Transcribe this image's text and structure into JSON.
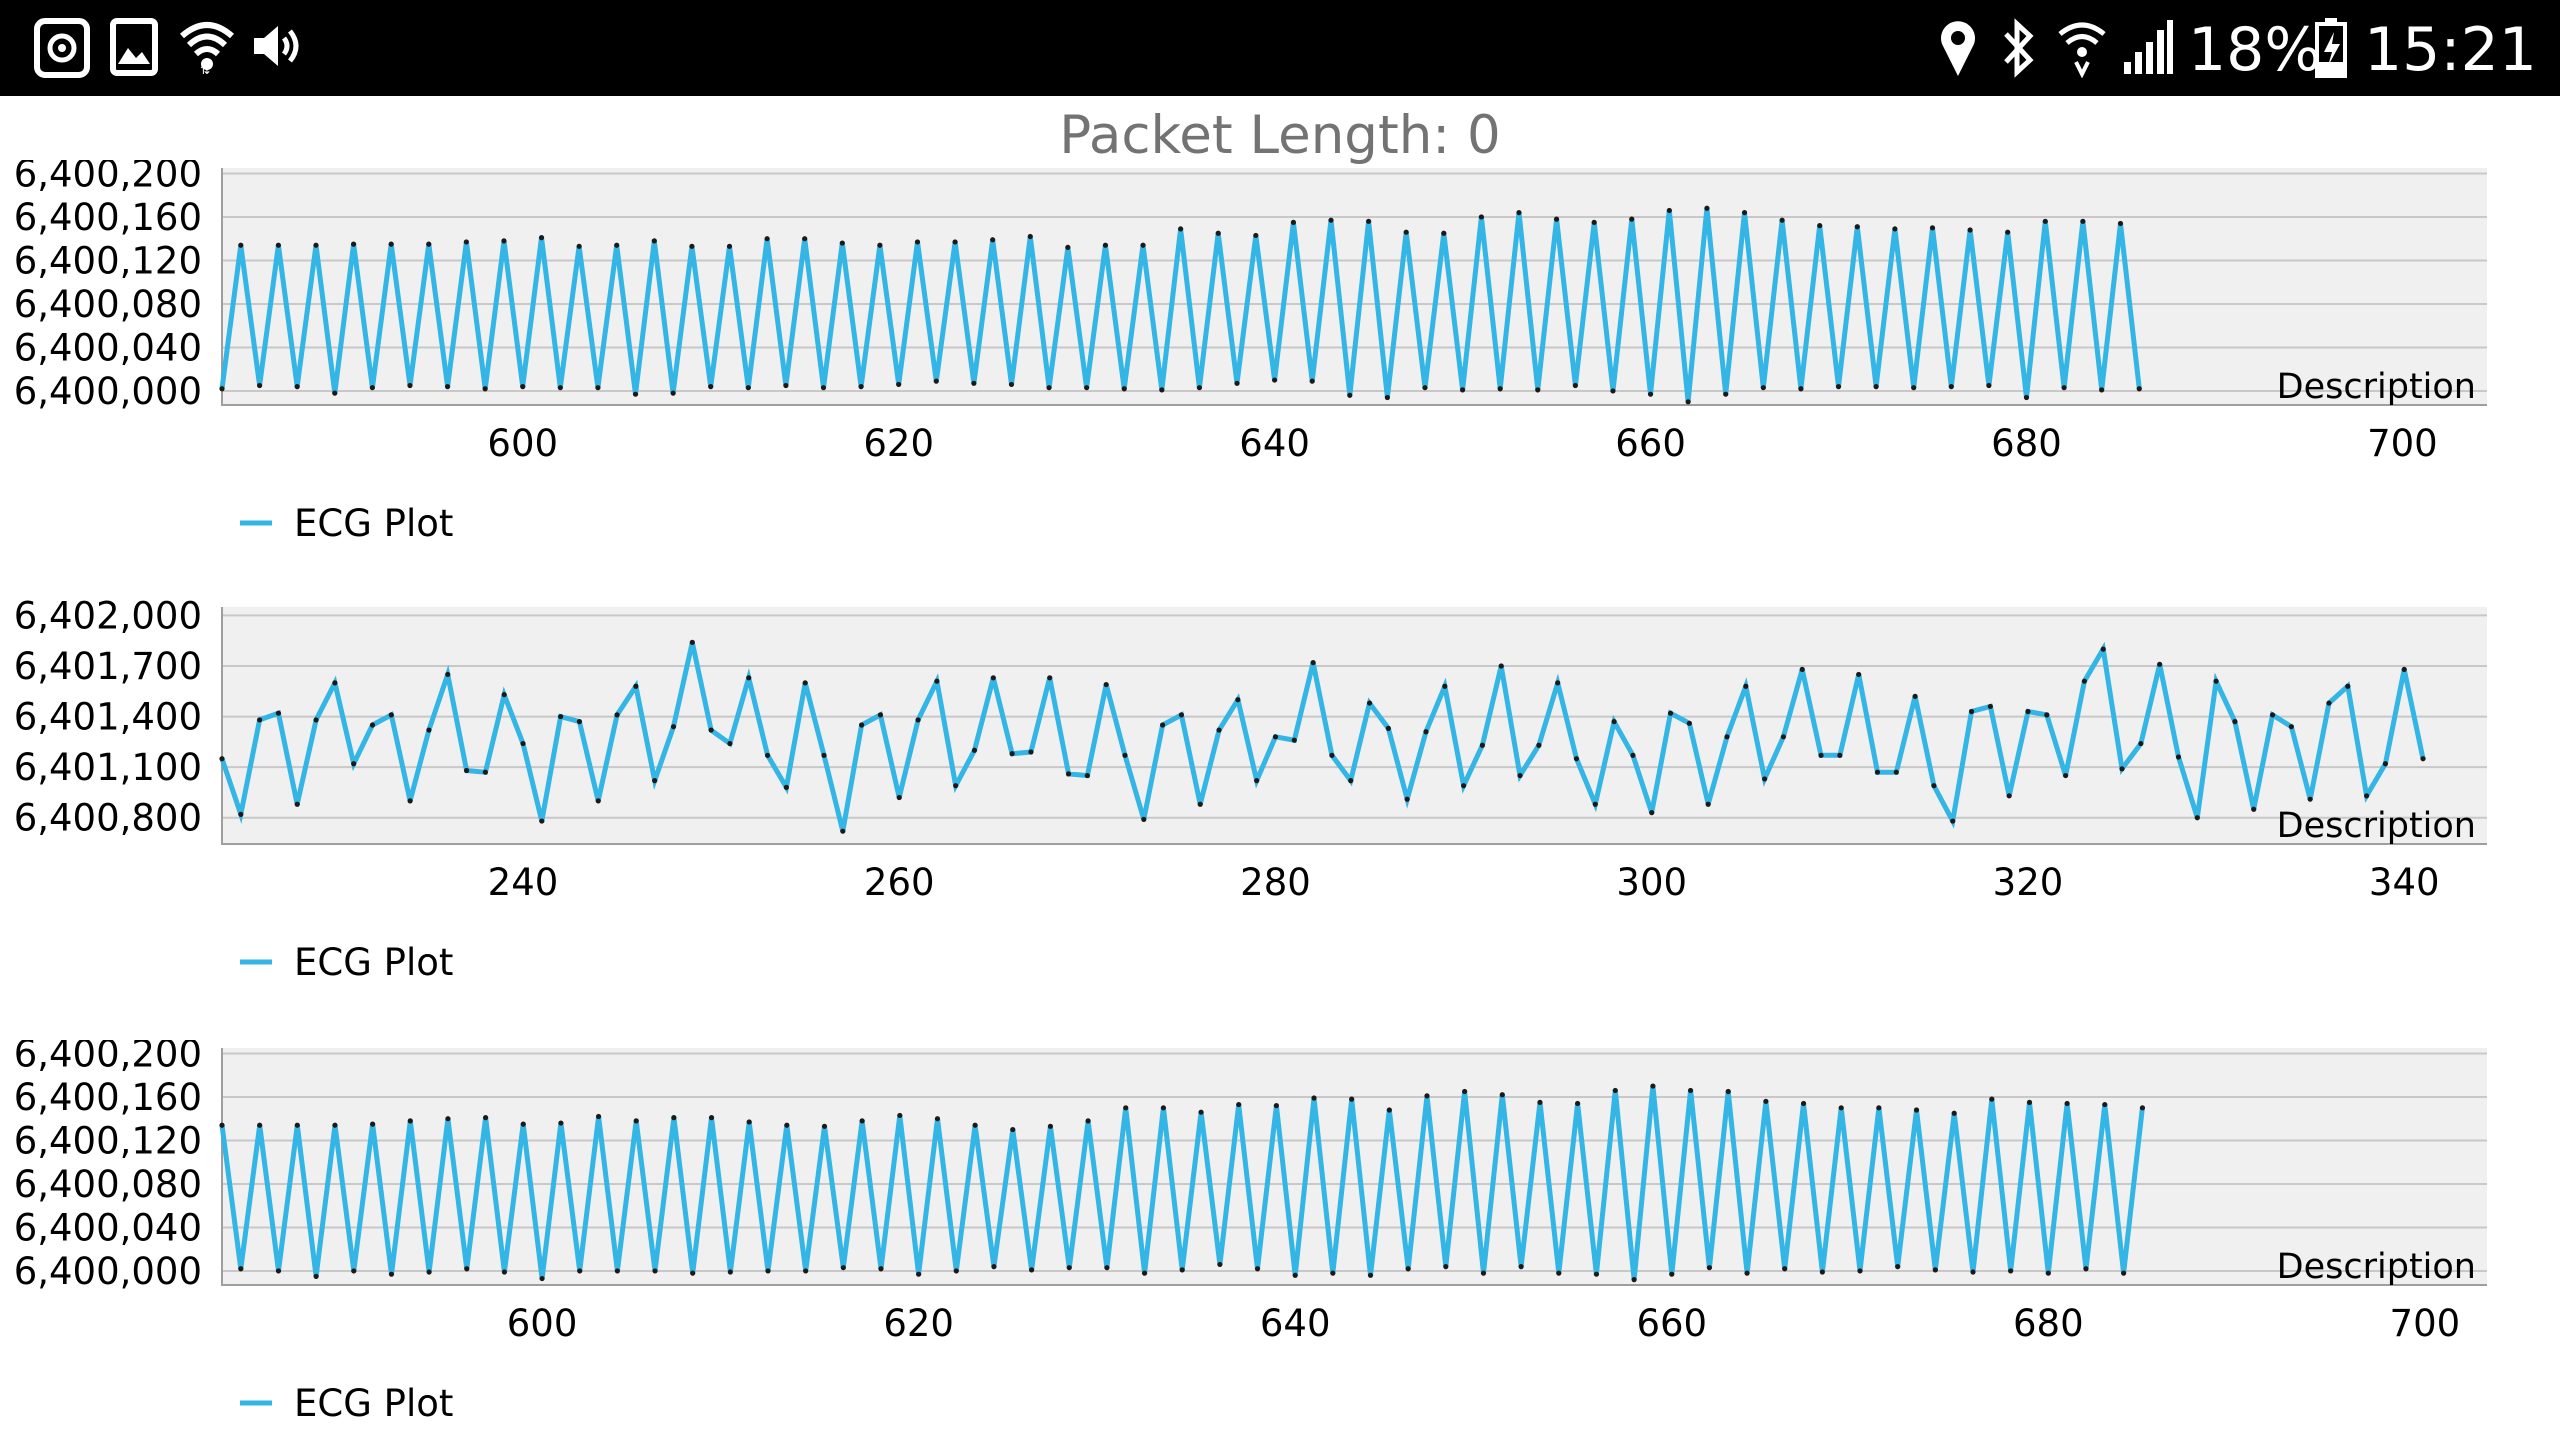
{
  "status_bar": {
    "left_icons": [
      "screen-record-icon",
      "gallery-icon",
      "wifi-icon",
      "volume-icon"
    ],
    "right_icons": [
      "location-icon",
      "bluetooth-icon",
      "wifi-calling-icon",
      "signal-icon",
      "battery-charging-icon"
    ],
    "battery": "18%",
    "time": "15:21"
  },
  "header": {
    "title": "Packet Length: 0"
  },
  "colors": {
    "line": "#33b5e5",
    "plot_background": "#f0f0f0",
    "grid": "#c8c8c8",
    "point": "#1a1a1a",
    "text": "#000000"
  },
  "chart_data": [
    {
      "type": "line",
      "series": [
        {
          "name": "ECG Plot",
          "x_start": 584,
          "values": [
            6400002,
            6400134,
            6400005,
            6400134,
            6400004,
            6400134,
            6399998,
            6400135,
            6400003,
            6400135,
            6400005,
            6400135,
            6400004,
            6400137,
            6400002,
            6400138,
            6400004,
            6400141,
            6400003,
            6400133,
            6400003,
            6400134,
            6399997,
            6400138,
            6399998,
            6400133,
            6400004,
            6400133,
            6400003,
            6400140,
            6400005,
            6400140,
            6400003,
            6400136,
            6400004,
            6400134,
            6400006,
            6400137,
            6400009,
            6400137,
            6400007,
            6400139,
            6400006,
            6400142,
            6400003,
            6400132,
            6400003,
            6400134,
            6400002,
            6400134,
            6400001,
            6400149,
            6400003,
            6400145,
            6400007,
            6400143,
            6400010,
            6400155,
            6400009,
            6400157,
            6399996,
            6400156,
            6399994,
            6400146,
            6400003,
            6400145,
            6400001,
            6400160,
            6400002,
            6400164,
            6400001,
            6400158,
            6400005,
            6400155,
            6400000,
            6400158,
            6399997,
            6400166,
            6399990,
            6400168,
            6399997,
            6400164,
            6400003,
            6400157,
            6400002,
            6400152,
            6400004,
            6400151,
            6400004,
            6400149,
            6400003,
            6400150,
            6400004,
            6400148,
            6400005,
            6400146,
            6399994,
            6400156,
            6400003,
            6400156,
            6400001,
            6400154,
            6400002
          ]
        }
      ],
      "ylim": [
        6399988,
        6400205
      ],
      "yticks": [
        6400000,
        6400040,
        6400080,
        6400120,
        6400160,
        6400200
      ],
      "ytick_labels": [
        "6,400,000",
        "6,400,040",
        "6,400,080",
        "6,400,120",
        "6,400,160",
        "6,400,200"
      ],
      "xlim": [
        584,
        704.5
      ],
      "xticks": [
        600,
        620,
        640,
        660,
        680,
        700
      ],
      "xtick_labels": [
        "600",
        "620",
        "640",
        "660",
        "680",
        "700"
      ],
      "description": "Description",
      "legend": "ECG Plot",
      "grid": true,
      "legend_position": "bottom-left"
    },
    {
      "type": "line",
      "series": [
        {
          "name": "ECG Plot",
          "x_start": 224,
          "values": [
            6401150,
            6400820,
            6401380,
            6401420,
            6400880,
            6401380,
            6401600,
            6401120,
            6401350,
            6401410,
            6400900,
            6401320,
            6401650,
            6401080,
            6401070,
            6401530,
            6401240,
            6400780,
            6401400,
            6401370,
            6400900,
            6401410,
            6401580,
            6401020,
            6401340,
            6401840,
            6401320,
            6401240,
            6401630,
            6401170,
            6400980,
            6401600,
            6401170,
            6400720,
            6401350,
            6401410,
            6400920,
            6401380,
            6401610,
            6400990,
            6401200,
            6401630,
            6401180,
            6401190,
            6401630,
            6401060,
            6401050,
            6401590,
            6401170,
            6400790,
            6401350,
            6401410,
            6400880,
            6401320,
            6401500,
            6401020,
            6401280,
            6401260,
            6401720,
            6401170,
            6401020,
            6401480,
            6401330,
            6400910,
            6401310,
            6401580,
            6400990,
            6401230,
            6401700,
            6401050,
            6401230,
            6401600,
            6401150,
            6400880,
            6401370,
            6401170,
            6400830,
            6401420,
            6401360,
            6400880,
            6401280,
            6401580,
            6401030,
            6401280,
            6401680,
            6401170,
            6401170,
            6401650,
            6401070,
            6401070,
            6401520,
            6400990,
            6400780,
            6401430,
            6401460,
            6400930,
            6401430,
            6401410,
            6401050,
            6401610,
            6401800,
            6401090,
            6401240,
            6401710,
            6401160,
            6400800,
            6401610,
            6401370,
            6400850,
            6401410,
            6401340,
            6400910,
            6401480,
            6401580,
            6400930,
            6401120,
            6401680,
            6401150
          ]
        }
      ],
      "ylim": [
        6400650,
        6402050
      ],
      "yticks": [
        6400800,
        6401100,
        6401400,
        6401700,
        6402000
      ],
      "ytick_labels": [
        "6,400,800",
        "6,401,100",
        "6,401,400",
        "6,401,700",
        "6,402,000"
      ],
      "xlim": [
        224,
        344.4
      ],
      "xticks": [
        240,
        260,
        280,
        300,
        320,
        340
      ],
      "xtick_labels": [
        "240",
        "260",
        "280",
        "300",
        "320",
        "340"
      ],
      "description": "Description",
      "legend": "ECG Plot",
      "grid": true,
      "legend_position": "bottom-left"
    },
    {
      "type": "line",
      "series": [
        {
          "name": "ECG Plot",
          "x_start": 583,
          "values": [
            6400134,
            6400002,
            6400134,
            6400000,
            6400134,
            6399995,
            6400134,
            6400000,
            6400135,
            6399997,
            6400138,
            6399999,
            6400140,
            6400002,
            6400141,
            6399999,
            6400135,
            6399993,
            6400136,
            6400000,
            6400142,
            6400000,
            6400138,
            6400000,
            6400141,
            6399998,
            6400141,
            6399999,
            6400137,
            6400000,
            6400134,
            6400000,
            6400133,
            6400003,
            6400138,
            6400002,
            6400143,
            6399997,
            6400140,
            6400000,
            6400134,
            6400004,
            6400130,
            6400001,
            6400133,
            6400003,
            6400138,
            6400003,
            6400150,
            6399998,
            6400150,
            6400001,
            6400146,
            6400006,
            6400153,
            6400002,
            6400152,
            6399996,
            6400159,
            6399998,
            6400158,
            6399996,
            6400148,
            6400002,
            6400161,
            6400004,
            6400165,
            6399998,
            6400162,
            6400004,
            6400155,
            6399998,
            6400154,
            6399997,
            6400166,
            6399992,
            6400170,
            6399997,
            6400166,
            6400003,
            6400165,
            6399998,
            6400156,
            6400002,
            6400154,
            6399999,
            6400150,
            6400000,
            6400150,
            6400004,
            6400148,
            6400001,
            6400145,
            6399999,
            6400158,
            6400000,
            6400155,
            6399998,
            6400154,
            6400002,
            6400153,
            6399998,
            6400150
          ]
        }
      ],
      "ylim": [
        6399988,
        6400205
      ],
      "yticks": [
        6400000,
        6400040,
        6400080,
        6400120,
        6400160,
        6400200
      ],
      "ytick_labels": [
        "6,400,000",
        "6,400,040",
        "6,400,080",
        "6,400,120",
        "6,400,160",
        "6,400,200"
      ],
      "xlim": [
        583,
        703.3
      ],
      "xticks": [
        600,
        620,
        640,
        660,
        680,
        700
      ],
      "xtick_labels": [
        "600",
        "620",
        "640",
        "660",
        "680",
        "700"
      ],
      "description": "Description",
      "legend": "ECG Plot",
      "grid": true,
      "legend_position": "bottom-left"
    }
  ]
}
